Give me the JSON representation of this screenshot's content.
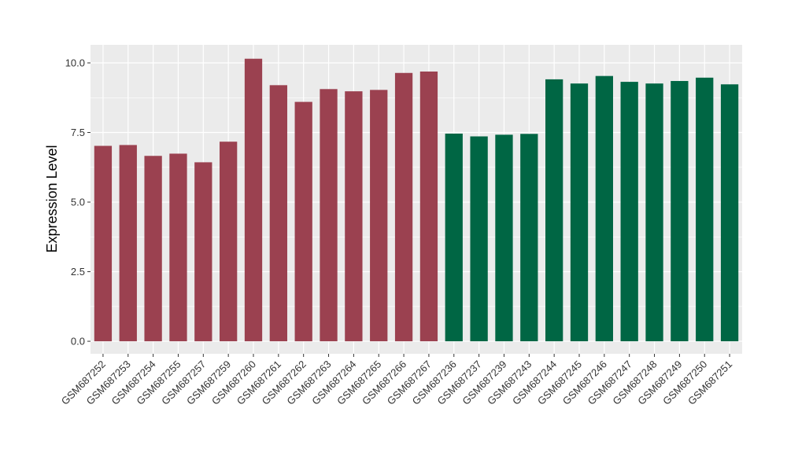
{
  "chart_data": {
    "type": "bar",
    "title": "",
    "xlabel": "",
    "ylabel": "Expression Level",
    "ylim": [
      -0.45,
      10.65
    ],
    "yticks": [
      "0.0",
      "2.5",
      "5.0",
      "7.5",
      "10.0"
    ],
    "ytick_values": [
      0,
      2.5,
      5,
      7.5,
      10
    ],
    "grid": true,
    "legend": "none",
    "colors": {
      "group_1": "#9b4150",
      "group_2": "#006644",
      "panel": "#ebebeb",
      "grid": "#ffffff"
    },
    "categories": [
      "GSM687252",
      "GSM687253",
      "GSM687254",
      "GSM687255",
      "GSM687257",
      "GSM687259",
      "GSM687260",
      "GSM687261",
      "GSM687262",
      "GSM687263",
      "GSM687264",
      "GSM687265",
      "GSM687266",
      "GSM687267",
      "GSM687236",
      "GSM687237",
      "GSM687239",
      "GSM687243",
      "GSM687244",
      "GSM687245",
      "GSM687246",
      "GSM687247",
      "GSM687248",
      "GSM687249",
      "GSM687250",
      "GSM687251"
    ],
    "values": [
      7.02,
      7.05,
      6.66,
      6.74,
      6.43,
      7.17,
      10.15,
      9.2,
      8.6,
      9.06,
      8.98,
      9.03,
      9.64,
      9.69,
      7.46,
      7.36,
      7.42,
      7.45,
      9.41,
      9.26,
      9.53,
      9.32,
      9.26,
      9.35,
      9.47,
      9.23
    ],
    "groups": [
      1,
      1,
      1,
      1,
      1,
      1,
      1,
      1,
      1,
      1,
      1,
      1,
      1,
      1,
      2,
      2,
      2,
      2,
      2,
      2,
      2,
      2,
      2,
      2,
      2,
      2
    ]
  }
}
